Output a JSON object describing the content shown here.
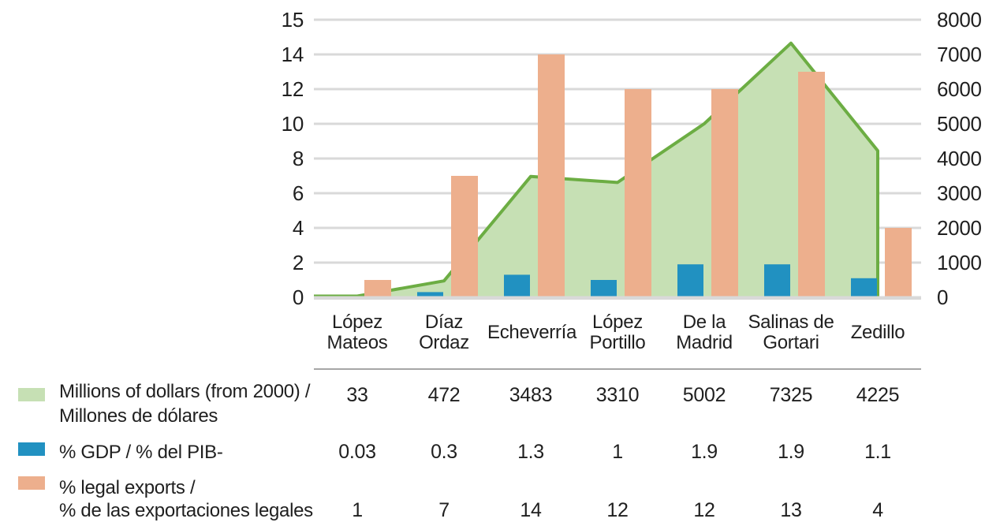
{
  "chart_data": {
    "type": "combo-area-bar",
    "categories_lines": [
      [
        "López",
        "Mateos"
      ],
      [
        "Díaz",
        "Ordaz"
      ],
      [
        "Echeverría"
      ],
      [
        "López",
        "Portillo"
      ],
      [
        "De la",
        "Madrid"
      ],
      [
        "Salinas de",
        "Gortari"
      ],
      [
        "Zedillo"
      ]
    ],
    "categories": [
      "López Mateos",
      "Díaz Ordaz",
      "Echeverría",
      "López Portillo",
      "De la Madrid",
      "Salinas de Gortari",
      "Zedillo"
    ],
    "series": [
      {
        "name": "Millions of dollars (from 2000) / Millones de dólares",
        "type": "area",
        "axis": "right",
        "fill_color": "#c6e0b4",
        "line_color": "#6cad43",
        "values": [
          33,
          472,
          3483,
          3310,
          5002,
          7325,
          4225
        ]
      },
      {
        "name": "% GDP / % del PIB-",
        "type": "bar",
        "axis": "left",
        "color": "#2191c1",
        "values": [
          0.03,
          0.3,
          1.3,
          1,
          1.9,
          1.9,
          1.1
        ]
      },
      {
        "name": "% legal exports / % de las exportaciones legales",
        "type": "bar",
        "axis": "left",
        "color": "#edaf8d",
        "values": [
          1,
          7,
          14,
          12,
          12,
          13,
          4
        ]
      }
    ],
    "left_axis": {
      "ticks": [
        "15",
        "14",
        "12",
        "10",
        "8",
        "6",
        "4",
        "2",
        "0"
      ],
      "min": 0,
      "max": 15
    },
    "right_axis": {
      "ticks": [
        "8000",
        "7000",
        "6000",
        "5000",
        "4000",
        "3000",
        "2000",
        "1000",
        "0"
      ],
      "min": 0,
      "max": 8000
    },
    "grid": true,
    "legend_position": "bottom-left"
  },
  "legend": {
    "rows": [
      {
        "swatch": "#c6e0b4",
        "lines": [
          "Millions of dollars (from 2000) /",
          "Millones de dólares"
        ]
      },
      {
        "swatch": "#2191c1",
        "lines": [
          "% GDP / % del PIB-"
        ]
      },
      {
        "swatch": "#edaf8d",
        "lines": [
          "% legal exports /",
          "% de las exportaciones legales"
        ]
      }
    ]
  },
  "colors": {
    "area_fill": "#c6e0b4",
    "area_line": "#6cad43",
    "gdp_bar": "#2191c1",
    "exports_bar": "#edaf8d",
    "gridline": "#d9d9d9",
    "baseline": "#d9d9d9",
    "separator": "#a6a6a6",
    "text": "#1f1f1f"
  }
}
